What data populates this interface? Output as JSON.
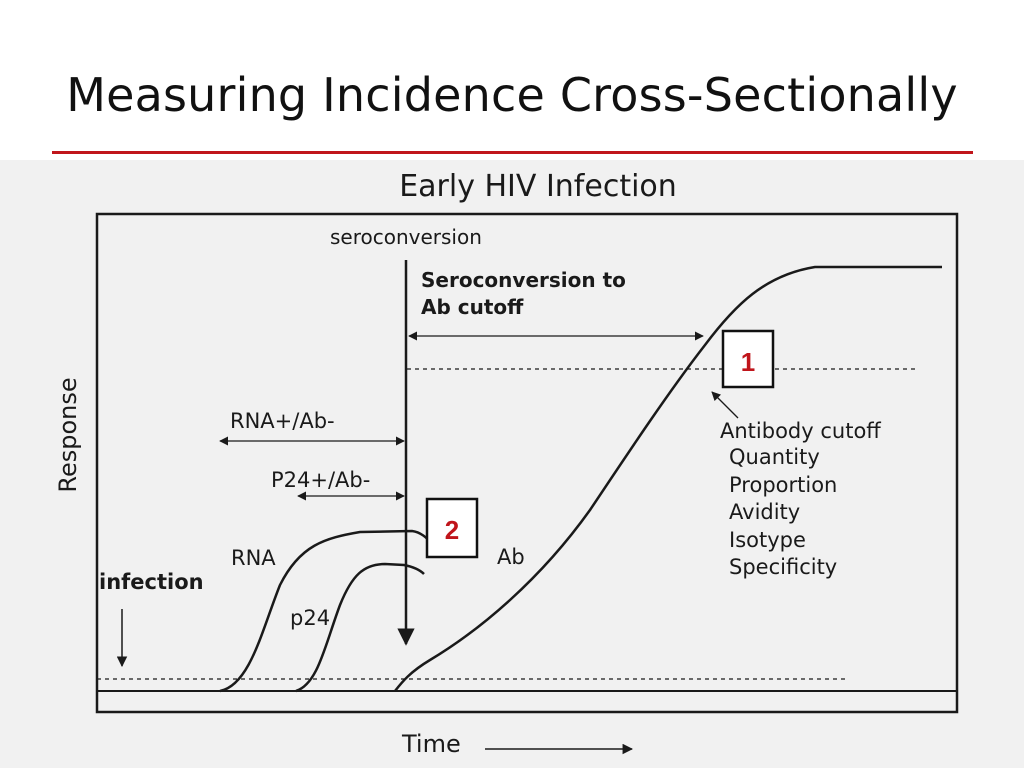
{
  "slide": {
    "title": "Measuring Incidence Cross-Sectionally",
    "accent_color": "#c0151b"
  },
  "figure": {
    "title": "Early HIV Infection",
    "y_axis_label": "Response",
    "x_axis_label": "Time",
    "labels": {
      "seroconversion": "seroconversion",
      "seroconversion_to_ab_cutoff_line1": "Seroconversion to",
      "seroconversion_to_ab_cutoff_line2": "Ab cutoff",
      "rna_pos_ab_neg": "RNA+/Ab-",
      "p24_pos_ab_neg": "P24+/Ab-",
      "rna_curve": "RNA",
      "p24_curve": "p24",
      "ab_curve": "Ab",
      "infection": "infection",
      "antibody_cutoff": "Antibody cutoff"
    },
    "cutoff_measures": [
      "Quantity",
      "Proportion",
      "Avidity",
      "Isotype",
      "Specificity"
    ],
    "callouts": [
      {
        "id": "1",
        "color": "#c0151b"
      },
      {
        "id": "2",
        "color": "#c0151b"
      }
    ]
  }
}
